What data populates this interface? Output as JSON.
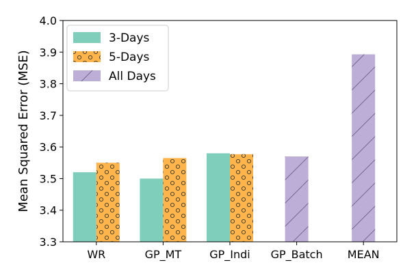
{
  "chart_data": {
    "type": "bar",
    "ylabel": "Mean Squared Error (MSE)",
    "xlabel": "",
    "ylim": [
      3.3,
      4.0
    ],
    "yticks": [
      "3.3",
      "3.4",
      "3.5",
      "3.6",
      "3.7",
      "3.8",
      "3.9",
      "4.0"
    ],
    "categories": [
      "WR",
      "GP_MT",
      "GP_Indi",
      "GP_Batch",
      "MEAN"
    ],
    "series": [
      {
        "name": "3-Days",
        "color": "#7fcdbb",
        "hatch": "none",
        "values": [
          3.52,
          3.5,
          3.58,
          null,
          null
        ]
      },
      {
        "name": "5-Days",
        "color": "#fdb44b",
        "hatch": "circles",
        "values": [
          3.55,
          3.565,
          3.577,
          null,
          null
        ]
      },
      {
        "name": "All Days",
        "color": "#bcaed6",
        "hatch": "diagonal",
        "values": [
          null,
          null,
          null,
          3.57,
          3.893
        ]
      }
    ],
    "legend_position": "top-left",
    "grid": false
  }
}
